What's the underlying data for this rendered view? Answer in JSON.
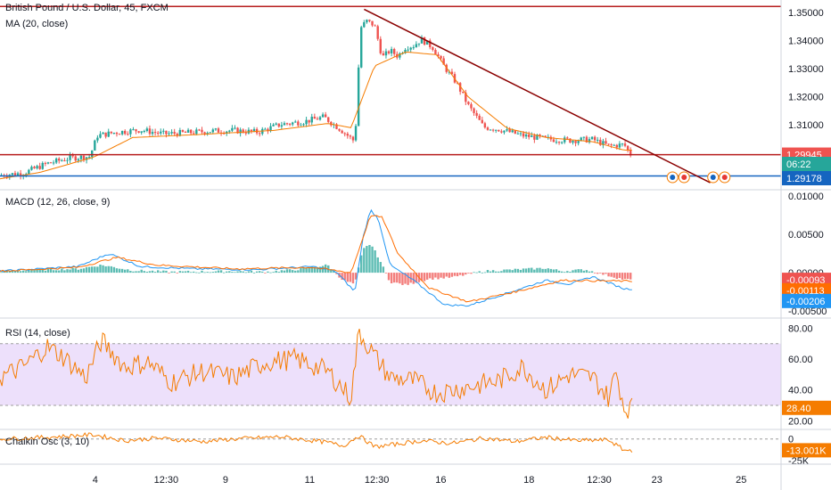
{
  "header": {
    "symbol_title": "British Pound / U.S. Dollar, 45, FXCM"
  },
  "colors": {
    "up": "#26a69a",
    "down": "#ef5350",
    "ma": "#f57c00",
    "macd_line": "#2196f3",
    "signal_line": "#ff6d00",
    "rsi_line": "#f57c00",
    "rsi_band": "#ede0fb",
    "chaikin_line": "#f57c00",
    "trend_line": "#8b0000",
    "h_line_red": "#b71c1c",
    "h_line_blue": "#1565c0",
    "price_badge_red": "#ef5350",
    "price_badge_teal": "#26a69a",
    "price_badge_blue": "#1565c0",
    "macd_blue_badge": "#2196f3"
  },
  "chart_data": [
    {
      "type": "candlestick",
      "title": "MA (20, close)",
      "y_ticks": [
        "1.35000",
        "1.34000",
        "1.33000",
        "1.32000",
        "1.31000"
      ],
      "ylim": [
        1.2872,
        1.3545
      ],
      "x_ticks": [
        "4",
        "12:30",
        "9",
        "11",
        "12:30",
        "16",
        "18",
        "12:30",
        "23",
        "25"
      ],
      "price_labels": {
        "last": "1.29945",
        "countdown": "06:22",
        "blue_line": "1.29178"
      },
      "horizontal_levels": [
        1.3522,
        1.2994,
        1.2918
      ],
      "trendline": {
        "from": [
          0.4667,
          1.3512
        ],
        "to": [
          0.9104,
          1.2894
        ]
      },
      "anchors": [
        [
          0.0,
          1.2921
        ],
        [
          0.03,
          1.2928
        ],
        [
          0.06,
          1.2962
        ],
        [
          0.09,
          1.2982
        ],
        [
          0.115,
          1.2987
        ],
        [
          0.125,
          1.3062
        ],
        [
          0.15,
          1.3074
        ],
        [
          0.18,
          1.3082
        ],
        [
          0.21,
          1.3068
        ],
        [
          0.24,
          1.3072
        ],
        [
          0.27,
          1.3078
        ],
        [
          0.3,
          1.308
        ],
        [
          0.33,
          1.3074
        ],
        [
          0.36,
          1.3102
        ],
        [
          0.39,
          1.3112
        ],
        [
          0.415,
          1.3128
        ],
        [
          0.435,
          1.3087
        ],
        [
          0.455,
          1.304
        ],
        [
          0.462,
          1.3445
        ],
        [
          0.47,
          1.347
        ],
        [
          0.48,
          1.3455
        ],
        [
          0.49,
          1.334
        ],
        [
          0.5,
          1.3365
        ],
        [
          0.51,
          1.3345
        ],
        [
          0.52,
          1.3378
        ],
        [
          0.53,
          1.3382
        ],
        [
          0.54,
          1.3405
        ],
        [
          0.555,
          1.3375
        ],
        [
          0.57,
          1.3305
        ],
        [
          0.585,
          1.325
        ],
        [
          0.6,
          1.317
        ],
        [
          0.62,
          1.3092
        ],
        [
          0.64,
          1.3084
        ],
        [
          0.67,
          1.3062
        ],
        [
          0.7,
          1.305
        ],
        [
          0.73,
          1.3045
        ],
        [
          0.76,
          1.3048
        ],
        [
          0.78,
          1.3025
        ],
        [
          0.8,
          1.303
        ],
        [
          0.81,
          1.2988
        ]
      ],
      "ma_anchors": [
        [
          0.0,
          1.2908
        ],
        [
          0.05,
          1.293
        ],
        [
          0.12,
          1.2985
        ],
        [
          0.17,
          1.3055
        ],
        [
          0.25,
          1.3065
        ],
        [
          0.35,
          1.308
        ],
        [
          0.42,
          1.3105
        ],
        [
          0.45,
          1.309
        ],
        [
          0.48,
          1.331
        ],
        [
          0.52,
          1.336
        ],
        [
          0.56,
          1.335
        ],
        [
          0.6,
          1.32
        ],
        [
          0.65,
          1.3088
        ],
        [
          0.7,
          1.3055
        ],
        [
          0.76,
          1.304
        ],
        [
          0.8,
          1.301
        ]
      ]
    },
    {
      "type": "macd",
      "title": "MACD (12, 26, close, 9)",
      "y_ticks": [
        "0.01000",
        "0.00500",
        "0.00000",
        "-0.00500"
      ],
      "ylim": [
        -0.0058,
        0.0107
      ],
      "value_labels": [
        "-0.00093",
        "-0.00113",
        "-0.00206"
      ],
      "hist_anchors": [
        [
          0.0,
          0.0002
        ],
        [
          0.06,
          0.0004
        ],
        [
          0.1,
          0.0005
        ],
        [
          0.13,
          0.001
        ],
        [
          0.17,
          0.0003
        ],
        [
          0.22,
          0.0001
        ],
        [
          0.3,
          0.0002
        ],
        [
          0.34,
          0.0001
        ],
        [
          0.38,
          0.0004
        ],
        [
          0.42,
          0.001
        ],
        [
          0.44,
          -0.001
        ],
        [
          0.455,
          -0.0015
        ],
        [
          0.465,
          0.003
        ],
        [
          0.475,
          0.0038
        ],
        [
          0.485,
          0.002
        ],
        [
          0.5,
          -0.0012
        ],
        [
          0.52,
          -0.0016
        ],
        [
          0.55,
          -0.0008
        ],
        [
          0.58,
          -0.0006
        ],
        [
          0.62,
          0.0002
        ],
        [
          0.66,
          0.0004
        ],
        [
          0.7,
          0.0006
        ],
        [
          0.72,
          0.0002
        ],
        [
          0.75,
          0.0004
        ],
        [
          0.8,
          -0.0009
        ]
      ],
      "macd_anchors": [
        [
          0.0,
          0.0002
        ],
        [
          0.1,
          0.0008
        ],
        [
          0.14,
          0.0025
        ],
        [
          0.18,
          0.0008
        ],
        [
          0.25,
          0.0005
        ],
        [
          0.33,
          0.0004
        ],
        [
          0.4,
          0.0008
        ],
        [
          0.43,
          0.0002
        ],
        [
          0.455,
          -0.0025
        ],
        [
          0.465,
          0.0045
        ],
        [
          0.475,
          0.0082
        ],
        [
          0.485,
          0.007
        ],
        [
          0.5,
          0.001
        ],
        [
          0.53,
          -0.001
        ],
        [
          0.57,
          -0.0042
        ],
        [
          0.6,
          -0.0043
        ],
        [
          0.64,
          -0.003
        ],
        [
          0.7,
          -0.001
        ],
        [
          0.73,
          -0.0015
        ],
        [
          0.76,
          -0.0005
        ],
        [
          0.8,
          -0.0021
        ]
      ],
      "signal_anchors": [
        [
          0.0,
          0.0002
        ],
        [
          0.1,
          0.0007
        ],
        [
          0.15,
          0.002
        ],
        [
          0.2,
          0.001
        ],
        [
          0.3,
          0.0005
        ],
        [
          0.4,
          0.0007
        ],
        [
          0.45,
          0.0
        ],
        [
          0.475,
          0.0075
        ],
        [
          0.49,
          0.0072
        ],
        [
          0.51,
          0.0025
        ],
        [
          0.55,
          -0.002
        ],
        [
          0.6,
          -0.0038
        ],
        [
          0.66,
          -0.0025
        ],
        [
          0.72,
          -0.001
        ],
        [
          0.8,
          -0.0011
        ]
      ]
    },
    {
      "type": "rsi",
      "title": "RSI (14, close)",
      "y_ticks": [
        "80.00",
        "60.00",
        "40.00",
        "20.00"
      ],
      "ylim": [
        15,
        86
      ],
      "band": [
        30,
        70
      ],
      "value_label": "28.40",
      "anchors": [
        [
          0.0,
          48
        ],
        [
          0.03,
          55
        ],
        [
          0.06,
          68
        ],
        [
          0.08,
          62
        ],
        [
          0.11,
          48
        ],
        [
          0.13,
          72
        ],
        [
          0.16,
          55
        ],
        [
          0.19,
          58
        ],
        [
          0.22,
          45
        ],
        [
          0.26,
          52
        ],
        [
          0.3,
          48
        ],
        [
          0.34,
          58
        ],
        [
          0.38,
          60
        ],
        [
          0.42,
          52
        ],
        [
          0.45,
          35
        ],
        [
          0.46,
          78
        ],
        [
          0.48,
          62
        ],
        [
          0.5,
          48
        ],
        [
          0.53,
          46
        ],
        [
          0.56,
          38
        ],
        [
          0.6,
          42
        ],
        [
          0.64,
          46
        ],
        [
          0.67,
          55
        ],
        [
          0.7,
          40
        ],
        [
          0.73,
          50
        ],
        [
          0.76,
          48
        ],
        [
          0.78,
          35
        ],
        [
          0.79,
          52
        ],
        [
          0.8,
          28.4
        ]
      ]
    },
    {
      "type": "line",
      "title": "Chaikin Osc (3, 10)",
      "y_ticks": [
        "0",
        "-25K"
      ],
      "ylim": [
        -28000,
        10000
      ],
      "value_label": "-13.001K",
      "anchors": [
        [
          0.0,
          0
        ],
        [
          0.06,
          2000
        ],
        [
          0.12,
          5000
        ],
        [
          0.16,
          -2000
        ],
        [
          0.2,
          1000
        ],
        [
          0.26,
          -3000
        ],
        [
          0.3,
          0
        ],
        [
          0.36,
          2500
        ],
        [
          0.42,
          -4000
        ],
        [
          0.44,
          -8000
        ],
        [
          0.46,
          4000
        ],
        [
          0.48,
          -9000
        ],
        [
          0.5,
          -7000
        ],
        [
          0.54,
          -2000
        ],
        [
          0.58,
          -5000
        ],
        [
          0.62,
          1000
        ],
        [
          0.66,
          -3000
        ],
        [
          0.7,
          2000
        ],
        [
          0.74,
          -2000
        ],
        [
          0.78,
          -1000
        ],
        [
          0.8,
          -13001
        ]
      ]
    }
  ]
}
